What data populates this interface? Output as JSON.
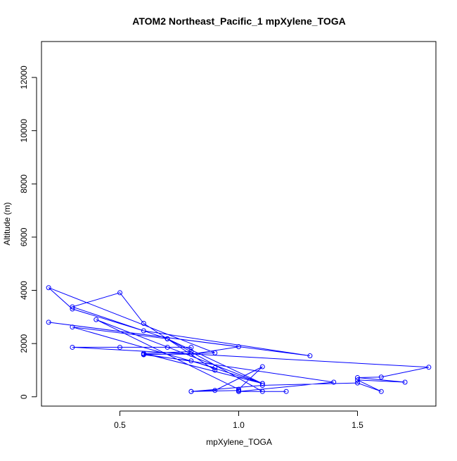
{
  "chart_data": {
    "type": "line",
    "title": "ATOM2 Northeast_Pacific_1 mpXylene_TOGA",
    "xlabel": "mpXylene_TOGA",
    "ylabel": "Altitude (m)",
    "xlim": [
      0.17,
      1.83
    ],
    "ylim": [
      -350,
      13350
    ],
    "xticks": [
      0.5,
      1.0,
      1.5
    ],
    "xtick_labels": [
      "0.5",
      "1.0",
      "1.5"
    ],
    "yticks": [
      0,
      2000,
      4000,
      6000,
      8000,
      10000,
      12000
    ],
    "ytick_labels": [
      "0",
      "2000",
      "4000",
      "6000",
      "8000",
      "10000",
      "12000"
    ],
    "grid": false,
    "series": [
      {
        "color": "#0000ff",
        "marker": "open-circle",
        "points": [
          {
            "x": 0.8,
            "y": 200
          },
          {
            "x": 1.1,
            "y": 430
          },
          {
            "x": 1.5,
            "y": 520
          },
          {
            "x": 1.6,
            "y": 200
          },
          {
            "x": 1.5,
            "y": 630
          },
          {
            "x": 1.7,
            "y": 550
          },
          {
            "x": 1.5,
            "y": 720
          },
          {
            "x": 1.6,
            "y": 740
          },
          {
            "x": 1.8,
            "y": 1110
          },
          {
            "x": 0.3,
            "y": 1860
          },
          {
            "x": 0.5,
            "y": 1860
          },
          {
            "x": 0.7,
            "y": 1860
          },
          {
            "x": 0.8,
            "y": 1860
          },
          {
            "x": 0.8,
            "y": 1700
          },
          {
            "x": 0.6,
            "y": 1630
          },
          {
            "x": 1.1,
            "y": 500
          },
          {
            "x": 0.7,
            "y": 2180
          },
          {
            "x": 0.3,
            "y": 3380
          },
          {
            "x": 0.5,
            "y": 3910
          },
          {
            "x": 0.6,
            "y": 2760
          },
          {
            "x": 0.9,
            "y": 1000
          },
          {
            "x": 0.9,
            "y": 1090
          },
          {
            "x": 0.3,
            "y": 2620
          },
          {
            "x": 0.7,
            "y": 2180
          },
          {
            "x": 0.7,
            "y": 2180
          },
          {
            "x": 1.1,
            "y": 200
          },
          {
            "x": 1.2,
            "y": 200
          },
          {
            "x": 1.0,
            "y": 200
          },
          {
            "x": 1.4,
            "y": 550
          },
          {
            "x": 0.6,
            "y": 1600
          },
          {
            "x": 0.8,
            "y": 1600
          },
          {
            "x": 1.0,
            "y": 1880
          },
          {
            "x": 0.2,
            "y": 2800
          },
          {
            "x": 1.3,
            "y": 1540
          },
          {
            "x": 0.6,
            "y": 2480
          },
          {
            "x": 0.3,
            "y": 3300
          },
          {
            "x": 0.2,
            "y": 4100
          },
          {
            "x": 0.9,
            "y": 1650
          },
          {
            "x": 0.6,
            "y": 1580
          },
          {
            "x": 0.8,
            "y": 1350
          },
          {
            "x": 1.1,
            "y": 500
          },
          {
            "x": 0.4,
            "y": 2900
          },
          {
            "x": 1.0,
            "y": 280
          },
          {
            "x": 1.1,
            "y": 1130
          },
          {
            "x": 0.9,
            "y": 240
          },
          {
            "x": 0.8,
            "y": 200
          },
          {
            "x": 1.0,
            "y": 240
          },
          {
            "x": 1.0,
            "y": 200
          }
        ]
      }
    ]
  }
}
